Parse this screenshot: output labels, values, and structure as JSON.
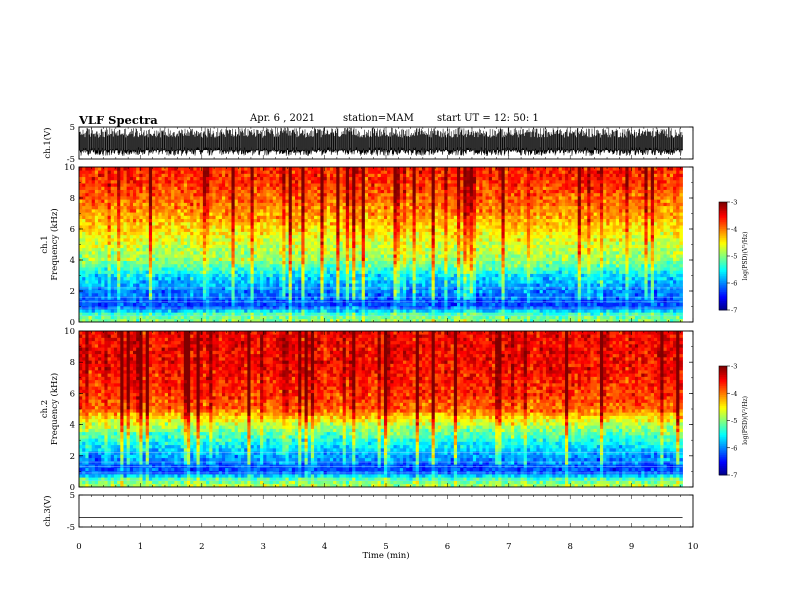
{
  "header": {
    "title": "VLF Spectra",
    "date": "Apr. 6 , 2021",
    "station": "station=MAM",
    "start": "start UT =   12: 50: 1"
  },
  "chart_data": [
    {
      "type": "line",
      "name": "ch1-waveform",
      "ylabel": "ch.1(V)",
      "ylim": [
        -5,
        5
      ],
      "yticks": [
        "5",
        "-5"
      ],
      "xlim": [
        0,
        10
      ],
      "description_values": {
        "envelope_upper": 4.8,
        "envelope_lower": -4.0,
        "baseline": -2.2
      }
    },
    {
      "type": "heatmap",
      "name": "ch1-spectrogram",
      "ylabel": "ch.1\nFrequency (kHz)",
      "ylim": [
        0,
        10
      ],
      "yticks": [
        "0",
        "2",
        "4",
        "6",
        "8",
        "10"
      ],
      "xlim": [
        0,
        10
      ],
      "data_end_min": 9.83,
      "colorbar": {
        "label": "log(PSD)(V²/Hz)",
        "range": [
          -7,
          -3
        ],
        "ticks": [
          "-3",
          "-4",
          "-5",
          "-6",
          "-7"
        ]
      },
      "profile_log_psd": [
        {
          "freq_khz": 0.0,
          "value": -5.0
        },
        {
          "freq_khz": 0.5,
          "value": -5.2
        },
        {
          "freq_khz": 1.0,
          "value": -6.3
        },
        {
          "freq_khz": 2.0,
          "value": -6.1
        },
        {
          "freq_khz": 3.0,
          "value": -5.7
        },
        {
          "freq_khz": 4.0,
          "value": -5.0
        },
        {
          "freq_khz": 5.0,
          "value": -4.8
        },
        {
          "freq_khz": 6.0,
          "value": -4.5
        },
        {
          "freq_khz": 7.0,
          "value": -4.2
        },
        {
          "freq_khz": 8.0,
          "value": -4.0
        },
        {
          "freq_khz": 9.0,
          "value": -3.8
        },
        {
          "freq_khz": 10.0,
          "value": -3.7
        }
      ]
    },
    {
      "type": "heatmap",
      "name": "ch2-spectrogram",
      "ylabel": "ch.2\nFrequency (kHz)",
      "ylim": [
        0,
        10
      ],
      "yticks": [
        "0",
        "2",
        "4",
        "6",
        "8",
        "10"
      ],
      "xlim": [
        0,
        10
      ],
      "data_end_min": 9.83,
      "colorbar": {
        "label": "log(PSD)(V²/Hz)",
        "range": [
          -7,
          -3
        ],
        "ticks": [
          "-3",
          "-4",
          "-5",
          "-6",
          "-7"
        ]
      },
      "profile_log_psd": [
        {
          "freq_khz": 0.0,
          "value": -4.8
        },
        {
          "freq_khz": 0.5,
          "value": -5.2
        },
        {
          "freq_khz": 1.0,
          "value": -6.3
        },
        {
          "freq_khz": 2.0,
          "value": -6.0
        },
        {
          "freq_khz": 3.0,
          "value": -5.5
        },
        {
          "freq_khz": 4.0,
          "value": -4.9
        },
        {
          "freq_khz": 5.0,
          "value": -4.0
        },
        {
          "freq_khz": 6.0,
          "value": -3.8
        },
        {
          "freq_khz": 7.0,
          "value": -3.7
        },
        {
          "freq_khz": 8.0,
          "value": -3.6
        },
        {
          "freq_khz": 9.0,
          "value": -3.6
        },
        {
          "freq_khz": 10.0,
          "value": -3.6
        }
      ]
    },
    {
      "type": "line",
      "name": "ch3-waveform",
      "ylabel": "ch.3(V)",
      "ylim": [
        -5,
        5
      ],
      "yticks": [
        "5",
        "-5"
      ],
      "xlim": [
        0,
        10
      ],
      "values": [
        {
          "x": 0,
          "y": -2.0
        },
        {
          "x": 9.83,
          "y": -2.0
        }
      ]
    }
  ],
  "xaxis": {
    "label": "Time (min)",
    "ticks": [
      "0",
      "1",
      "2",
      "3",
      "4",
      "5",
      "6",
      "7",
      "8",
      "9",
      "10"
    ]
  }
}
